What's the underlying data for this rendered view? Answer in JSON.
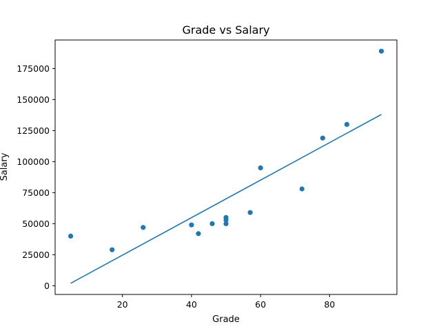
{
  "chart_data": {
    "type": "scatter",
    "title": "Grade vs Salary",
    "xlabel": "Grade",
    "ylabel": "Salary",
    "xlim": [
      0.5,
      99.5
    ],
    "ylim": [
      -7000,
      198000
    ],
    "xticks": [
      20,
      40,
      60,
      80
    ],
    "yticks": [
      0,
      25000,
      50000,
      75000,
      100000,
      125000,
      150000,
      175000
    ],
    "color": "#1f77b4",
    "grid": false,
    "series": [
      {
        "type": "scatter",
        "x": [
          5,
          17,
          26,
          40,
          42,
          46,
          50,
          50,
          50,
          57,
          60,
          72,
          78,
          85,
          95
        ],
        "y": [
          40000,
          29000,
          47000,
          49000,
          42000,
          50000,
          55000,
          53000,
          50000,
          59000,
          95000,
          78000,
          119000,
          130000,
          189000
        ]
      },
      {
        "type": "line",
        "x": [
          5,
          95
        ],
        "y": [
          2000,
          138000
        ]
      }
    ]
  }
}
